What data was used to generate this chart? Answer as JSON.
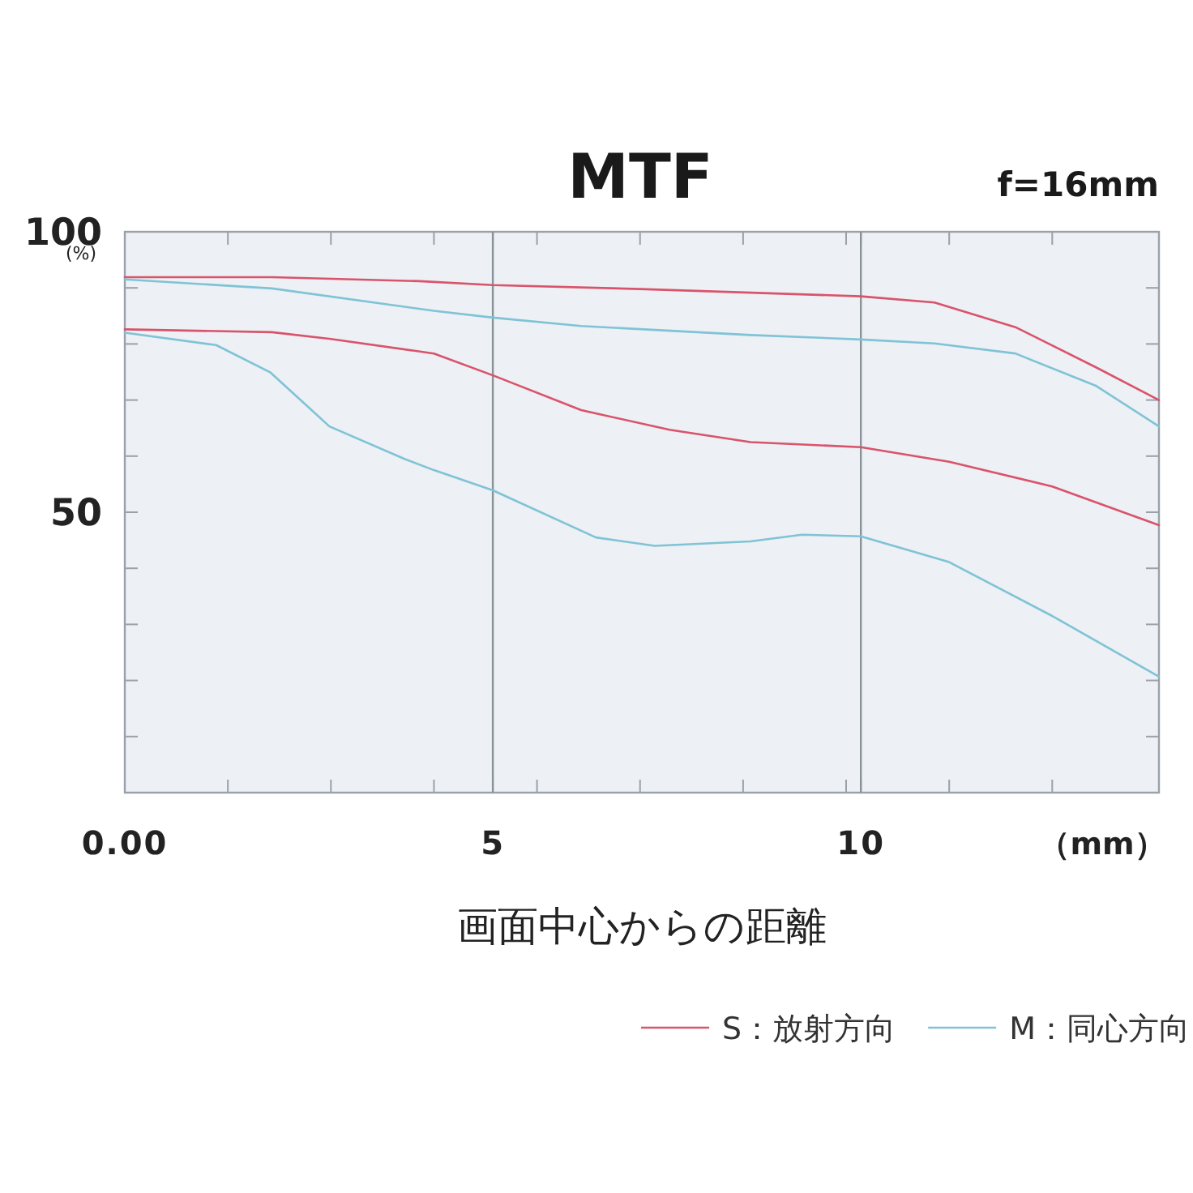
{
  "chart_data": {
    "type": "line",
    "title": "MTF",
    "subtitle": "f=16mm",
    "xlabel": "画面中心からの距離",
    "ylabel": "(%)",
    "annotations": [
      "（mm）"
    ],
    "xlim": [
      0,
      14.05
    ],
    "ylim": [
      0,
      100
    ],
    "xticks": [
      {
        "value": 0,
        "label": "0.00"
      },
      {
        "value": 1.4,
        "label": null
      },
      {
        "value": 2.8,
        "label": null
      },
      {
        "value": 4.2,
        "label": null
      },
      5,
      {
        "value": 5.6,
        "label": null
      },
      {
        "value": 7,
        "label": null
      },
      {
        "value": 8.4,
        "label": null
      },
      {
        "value": 9.8,
        "label": null
      },
      10,
      {
        "value": 11.2,
        "label": null
      },
      {
        "value": 12.6,
        "label": null
      }
    ],
    "yticks": [
      {
        "value": 10,
        "label": null
      },
      {
        "value": 20,
        "label": null
      },
      {
        "value": 30,
        "label": null
      },
      {
        "value": 40,
        "label": null
      },
      50,
      {
        "value": 60,
        "label": null
      },
      {
        "value": 70,
        "label": null
      },
      {
        "value": 80,
        "label": null
      },
      {
        "value": 90,
        "label": null
      },
      100
    ],
    "ref_lines": [
      {
        "axis": "x",
        "value": 5,
        "color": "#8a9299"
      },
      {
        "axis": "x",
        "value": 10,
        "color": "#8a9299"
      }
    ],
    "legend": "bottom right",
    "line_style": "solid",
    "marker": "none",
    "series": [
      {
        "name": "S：放射方向",
        "color": "#d9536b",
        "x": [
          0,
          2,
          4,
          5,
          7,
          10,
          11,
          12.1,
          13.2,
          14.05
        ],
        "values": [
          91.9,
          91.9,
          91.2,
          90.5,
          89.8,
          88.5,
          87.4,
          83.0,
          75.8,
          70.0
        ]
      },
      {
        "name": "M：同心方向",
        "color": "#7fc3d6",
        "x": [
          0,
          2,
          4.2,
          5,
          6.2,
          8.5,
          10,
          11,
          12.1,
          13.2,
          14.05
        ],
        "values": [
          91.5,
          89.9,
          85.9,
          84.7,
          83.2,
          81.6,
          80.8,
          80.1,
          78.3,
          72.5,
          65.3
        ]
      },
      {
        "color": "#d9536b",
        "x": [
          0,
          2,
          2.8,
          4.2,
          5,
          6.2,
          7.4,
          8.5,
          10,
          11.2,
          12.6,
          14.05
        ],
        "values": [
          82.6,
          82.1,
          80.9,
          78.3,
          74.4,
          68.2,
          64.7,
          62.5,
          61.6,
          59.0,
          54.6,
          47.7
        ]
      },
      {
        "color": "#7fc3d6",
        "x": [
          0,
          1.24,
          1.98,
          2.78,
          3.8,
          4.2,
          5,
          6.4,
          7.2,
          8.5,
          9.2,
          10,
          11.2,
          12.6,
          14.05
        ],
        "values": [
          82.0,
          79.8,
          74.9,
          65.3,
          59.5,
          57.5,
          53.9,
          45.5,
          44.0,
          44.8,
          46.0,
          45.7,
          41.1,
          31.5,
          20.7
        ]
      }
    ]
  }
}
